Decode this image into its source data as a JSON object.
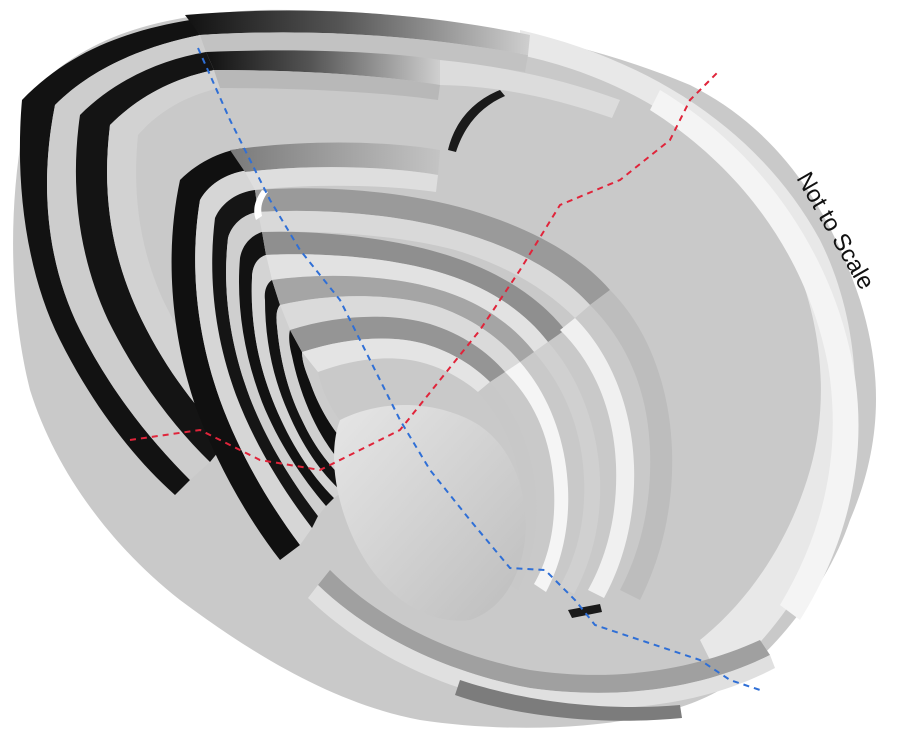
{
  "figure": {
    "caption": "Not to Scale"
  },
  "colors": {
    "background": "#ffffff",
    "bench_light": "#d0d0d0",
    "bench_mid": "#a9a9a9",
    "bench_dark": "#111111",
    "section_line_red": "#e0243a",
    "section_line_blue": "#2f6fd6"
  }
}
